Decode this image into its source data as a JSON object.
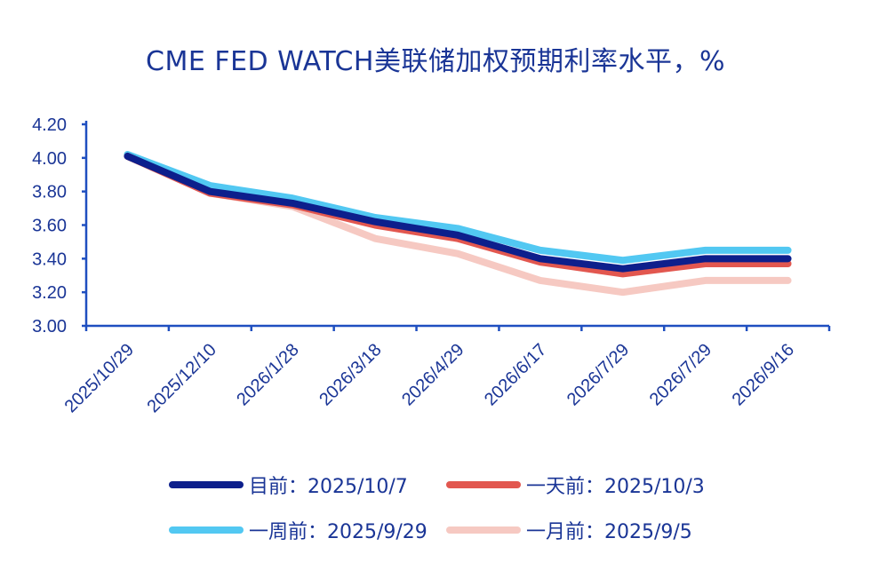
{
  "chart_data": {
    "type": "line",
    "title": "CME FED WATCH美联储加权预期利率水平，%",
    "xlabel": "",
    "ylabel": "",
    "categories": [
      "2025/10/29",
      "2025/12/10",
      "2026/1/28",
      "2026/3/18",
      "2026/4/29",
      "2026/6/17",
      "2026/7/29",
      "2026/7/29",
      "2026/9/16"
    ],
    "ylim": [
      3.0,
      4.2
    ],
    "yticks": [
      "3.00",
      "3.20",
      "3.40",
      "3.60",
      "3.80",
      "4.00",
      "4.20"
    ],
    "ytick_values": [
      3.0,
      3.2,
      3.4,
      3.6,
      3.8,
      4.0,
      4.2
    ],
    "grid": false,
    "legend_position": "bottom",
    "series": [
      {
        "name": "一月前：2025/9/5",
        "color": "#f6c9c2",
        "values": [
          4.02,
          3.79,
          3.71,
          3.52,
          3.43,
          3.27,
          3.2,
          3.27,
          3.27
        ]
      },
      {
        "name": "一周前：2025/9/29",
        "color": "#52c8f2",
        "values": [
          4.02,
          3.835,
          3.76,
          3.645,
          3.58,
          3.45,
          3.39,
          3.45,
          3.45
        ]
      },
      {
        "name": "一天前：2025/10/3",
        "color": "#e2574f",
        "values": [
          4.01,
          3.79,
          3.72,
          3.6,
          3.52,
          3.38,
          3.31,
          3.37,
          3.37
        ]
      },
      {
        "name": "目前：2025/10/7",
        "color": "#0d1f8c",
        "values": [
          4.01,
          3.8,
          3.73,
          3.62,
          3.54,
          3.4,
          3.34,
          3.4,
          3.4
        ]
      }
    ]
  }
}
